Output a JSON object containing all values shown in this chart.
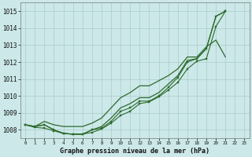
{
  "title": "Graphe pression niveau de la mer (hPa)",
  "ylim": [
    1007.5,
    1015.5
  ],
  "yticks": [
    1008,
    1009,
    1010,
    1011,
    1012,
    1013,
    1014,
    1015
  ],
  "bg_color": "#cce8e8",
  "grid_color": "#aacccc",
  "line_color": "#2d6a2d",
  "line1": [
    1008.3,
    1008.2,
    1008.3,
    1008.0,
    1007.8,
    1007.75,
    1007.75,
    1008.0,
    1008.1,
    1008.5,
    1009.1,
    1009.3,
    1009.7,
    1009.7,
    1010.0,
    1010.5,
    1011.1,
    1012.0,
    1012.2,
    1012.8,
    1014.7,
    1015.0
  ],
  "line2": [
    1008.3,
    1008.15,
    1008.1,
    1007.95,
    1007.78,
    1007.75,
    1007.75,
    1007.85,
    1008.05,
    1008.4,
    1008.85,
    1009.1,
    1009.55,
    1009.65,
    1009.95,
    1010.35,
    1010.8,
    1011.6,
    1012.05,
    1012.2,
    1014.1,
    1015.0
  ],
  "line3_smooth": [
    1008.3,
    1008.2,
    1008.5,
    1008.3,
    1008.2,
    1008.2,
    1008.2,
    1008.4,
    1008.7,
    1009.3,
    1009.9,
    1010.2,
    1010.6,
    1010.6,
    1010.9,
    1011.2,
    1011.6,
    1012.3,
    1012.3,
    1012.9,
    1013.3,
    1012.3
  ],
  "line4_smooth": [
    1008.3,
    1008.2,
    1008.3,
    1008.0,
    1007.8,
    1007.75,
    1007.75,
    1008.0,
    1008.2,
    1008.7,
    1009.3,
    1009.55,
    1009.9,
    1009.9,
    1010.2,
    1010.7,
    1011.2,
    1012.1,
    1012.2,
    1012.8,
    1014.7,
    1015.0
  ]
}
